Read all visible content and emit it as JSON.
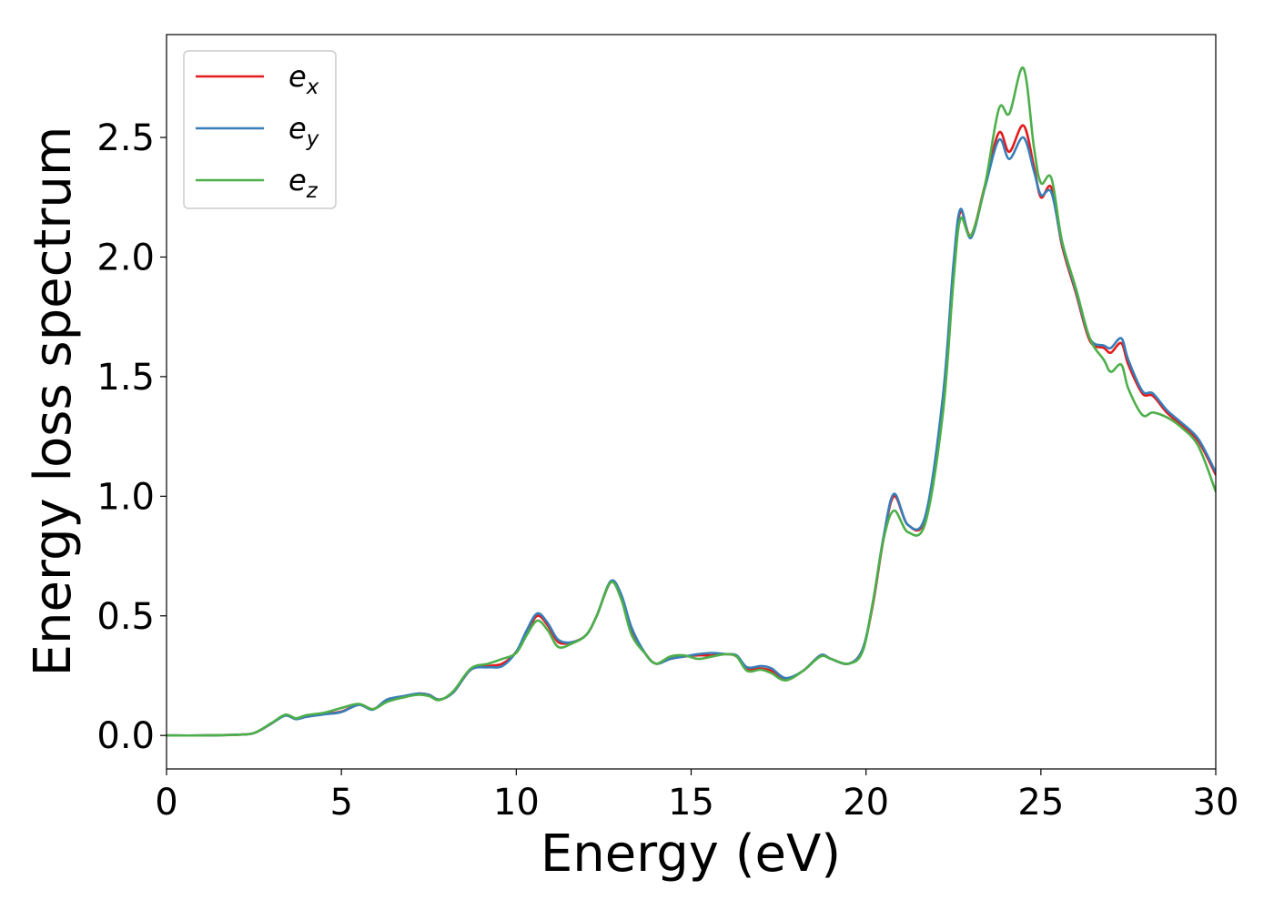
{
  "chart_data": {
    "type": "line",
    "title": "",
    "xlabel": "Energy (eV)",
    "ylabel": "Energy loss spectrum",
    "xlim": [
      0,
      30
    ],
    "ylim": [
      -0.14,
      2.93
    ],
    "x_ticks": [
      0,
      5,
      10,
      15,
      20,
      25,
      30
    ],
    "x_tick_labels": [
      "0",
      "5",
      "10",
      "15",
      "20",
      "25",
      "30"
    ],
    "y_ticks": [
      0.0,
      0.5,
      1.0,
      1.5,
      2.0,
      2.5
    ],
    "y_tick_labels": [
      "0.0",
      "0.5",
      "1.0",
      "1.5",
      "2.0",
      "2.5"
    ],
    "grid": false,
    "legend_position": "top-left",
    "series": [
      {
        "name": "e",
        "subscript": "x",
        "color": "#e41a1c",
        "points": [
          [
            0,
            0
          ],
          [
            1,
            0.0
          ],
          [
            2,
            0.003
          ],
          [
            2.5,
            0.01
          ],
          [
            3,
            0.05
          ],
          [
            3.4,
            0.085
          ],
          [
            3.7,
            0.07
          ],
          [
            4,
            0.08
          ],
          [
            4.5,
            0.09
          ],
          [
            5,
            0.1
          ],
          [
            5.5,
            0.13
          ],
          [
            5.9,
            0.11
          ],
          [
            6.3,
            0.145
          ],
          [
            6.8,
            0.16
          ],
          [
            7.2,
            0.175
          ],
          [
            7.5,
            0.17
          ],
          [
            7.8,
            0.15
          ],
          [
            8.2,
            0.18
          ],
          [
            8.7,
            0.275
          ],
          [
            9.2,
            0.29
          ],
          [
            9.6,
            0.3
          ],
          [
            10,
            0.35
          ],
          [
            10.3,
            0.43
          ],
          [
            10.6,
            0.5
          ],
          [
            10.9,
            0.46
          ],
          [
            11.2,
            0.39
          ],
          [
            11.6,
            0.39
          ],
          [
            12,
            0.42
          ],
          [
            12.3,
            0.5
          ],
          [
            12.7,
            0.64
          ],
          [
            13,
            0.58
          ],
          [
            13.3,
            0.44
          ],
          [
            13.7,
            0.34
          ],
          [
            14,
            0.3
          ],
          [
            14.4,
            0.32
          ],
          [
            14.8,
            0.33
          ],
          [
            15.2,
            0.335
          ],
          [
            15.6,
            0.335
          ],
          [
            16,
            0.34
          ],
          [
            16.3,
            0.33
          ],
          [
            16.6,
            0.28
          ],
          [
            17,
            0.28
          ],
          [
            17.3,
            0.27
          ],
          [
            17.7,
            0.235
          ],
          [
            18.2,
            0.27
          ],
          [
            18.7,
            0.335
          ],
          [
            19.0,
            0.32
          ],
          [
            19.5,
            0.3
          ],
          [
            19.9,
            0.36
          ],
          [
            20.2,
            0.55
          ],
          [
            20.5,
            0.82
          ],
          [
            20.8,
            1.0
          ],
          [
            21.2,
            0.88
          ],
          [
            21.7,
            0.91
          ],
          [
            22.2,
            1.4
          ],
          [
            22.5,
            1.95
          ],
          [
            22.7,
            2.19
          ],
          [
            23.0,
            2.09
          ],
          [
            23.4,
            2.3
          ],
          [
            23.8,
            2.52
          ],
          [
            24.1,
            2.44
          ],
          [
            24.5,
            2.55
          ],
          [
            24.8,
            2.38
          ],
          [
            25.0,
            2.25
          ],
          [
            25.3,
            2.29
          ],
          [
            25.6,
            2.05
          ],
          [
            26.0,
            1.85
          ],
          [
            26.4,
            1.65
          ],
          [
            26.8,
            1.62
          ],
          [
            27.0,
            1.6
          ],
          [
            27.3,
            1.64
          ],
          [
            27.5,
            1.55
          ],
          [
            27.9,
            1.43
          ],
          [
            28.2,
            1.42
          ],
          [
            28.6,
            1.35
          ],
          [
            29.0,
            1.3
          ],
          [
            29.5,
            1.23
          ],
          [
            30,
            1.09
          ]
        ]
      },
      {
        "name": "e",
        "subscript": "y",
        "color": "#377eb8",
        "points": [
          [
            0,
            0
          ],
          [
            1,
            0.0
          ],
          [
            2,
            0.003
          ],
          [
            2.5,
            0.01
          ],
          [
            3,
            0.05
          ],
          [
            3.4,
            0.083
          ],
          [
            3.7,
            0.068
          ],
          [
            4,
            0.078
          ],
          [
            4.5,
            0.088
          ],
          [
            5,
            0.098
          ],
          [
            5.5,
            0.128
          ],
          [
            5.9,
            0.108
          ],
          [
            6.3,
            0.15
          ],
          [
            6.8,
            0.165
          ],
          [
            7.2,
            0.175
          ],
          [
            7.5,
            0.17
          ],
          [
            7.8,
            0.15
          ],
          [
            8.2,
            0.18
          ],
          [
            8.7,
            0.275
          ],
          [
            9.2,
            0.285
          ],
          [
            9.6,
            0.29
          ],
          [
            10,
            0.35
          ],
          [
            10.3,
            0.44
          ],
          [
            10.6,
            0.51
          ],
          [
            10.9,
            0.47
          ],
          [
            11.2,
            0.4
          ],
          [
            11.6,
            0.39
          ],
          [
            12,
            0.42
          ],
          [
            12.3,
            0.5
          ],
          [
            12.7,
            0.645
          ],
          [
            13,
            0.59
          ],
          [
            13.3,
            0.45
          ],
          [
            13.7,
            0.34
          ],
          [
            14,
            0.3
          ],
          [
            14.4,
            0.32
          ],
          [
            14.8,
            0.33
          ],
          [
            15.2,
            0.34
          ],
          [
            15.6,
            0.345
          ],
          [
            16,
            0.34
          ],
          [
            16.3,
            0.335
          ],
          [
            16.6,
            0.285
          ],
          [
            17,
            0.29
          ],
          [
            17.3,
            0.28
          ],
          [
            17.7,
            0.24
          ],
          [
            18.2,
            0.27
          ],
          [
            18.7,
            0.335
          ],
          [
            19.0,
            0.32
          ],
          [
            19.5,
            0.3
          ],
          [
            19.9,
            0.36
          ],
          [
            20.2,
            0.56
          ],
          [
            20.5,
            0.83
          ],
          [
            20.8,
            1.01
          ],
          [
            21.2,
            0.88
          ],
          [
            21.7,
            0.92
          ],
          [
            22.2,
            1.42
          ],
          [
            22.5,
            1.97
          ],
          [
            22.7,
            2.2
          ],
          [
            23.0,
            2.08
          ],
          [
            23.4,
            2.29
          ],
          [
            23.8,
            2.49
          ],
          [
            24.1,
            2.41
          ],
          [
            24.5,
            2.5
          ],
          [
            24.8,
            2.36
          ],
          [
            25.0,
            2.26
          ],
          [
            25.3,
            2.27
          ],
          [
            25.6,
            2.06
          ],
          [
            26.0,
            1.86
          ],
          [
            26.4,
            1.66
          ],
          [
            26.8,
            1.63
          ],
          [
            27.0,
            1.62
          ],
          [
            27.3,
            1.66
          ],
          [
            27.5,
            1.57
          ],
          [
            27.9,
            1.44
          ],
          [
            28.2,
            1.43
          ],
          [
            28.6,
            1.36
          ],
          [
            29.0,
            1.31
          ],
          [
            29.5,
            1.24
          ],
          [
            30,
            1.1
          ]
        ]
      },
      {
        "name": "e",
        "subscript": "z",
        "color": "#4daf4a",
        "points": [
          [
            0,
            0
          ],
          [
            1,
            0.0
          ],
          [
            2,
            0.003
          ],
          [
            2.5,
            0.01
          ],
          [
            3,
            0.052
          ],
          [
            3.4,
            0.087
          ],
          [
            3.7,
            0.072
          ],
          [
            4,
            0.085
          ],
          [
            4.5,
            0.095
          ],
          [
            5,
            0.115
          ],
          [
            5.5,
            0.132
          ],
          [
            5.9,
            0.11
          ],
          [
            6.3,
            0.14
          ],
          [
            6.8,
            0.16
          ],
          [
            7.2,
            0.17
          ],
          [
            7.5,
            0.165
          ],
          [
            7.8,
            0.148
          ],
          [
            8.2,
            0.185
          ],
          [
            8.7,
            0.28
          ],
          [
            9.2,
            0.3
          ],
          [
            9.6,
            0.32
          ],
          [
            10,
            0.345
          ],
          [
            10.3,
            0.42
          ],
          [
            10.6,
            0.48
          ],
          [
            10.9,
            0.44
          ],
          [
            11.2,
            0.37
          ],
          [
            11.6,
            0.385
          ],
          [
            12,
            0.42
          ],
          [
            12.3,
            0.5
          ],
          [
            12.7,
            0.64
          ],
          [
            13,
            0.57
          ],
          [
            13.3,
            0.42
          ],
          [
            13.7,
            0.34
          ],
          [
            14,
            0.3
          ],
          [
            14.4,
            0.33
          ],
          [
            14.8,
            0.335
          ],
          [
            15.2,
            0.32
          ],
          [
            15.6,
            0.33
          ],
          [
            16,
            0.34
          ],
          [
            16.3,
            0.33
          ],
          [
            16.6,
            0.27
          ],
          [
            17,
            0.275
          ],
          [
            17.3,
            0.26
          ],
          [
            17.7,
            0.23
          ],
          [
            18.2,
            0.27
          ],
          [
            18.7,
            0.33
          ],
          [
            19.0,
            0.32
          ],
          [
            19.5,
            0.3
          ],
          [
            19.9,
            0.35
          ],
          [
            20.2,
            0.56
          ],
          [
            20.5,
            0.82
          ],
          [
            20.8,
            0.94
          ],
          [
            21.2,
            0.85
          ],
          [
            21.7,
            0.89
          ],
          [
            22.2,
            1.35
          ],
          [
            22.5,
            1.9
          ],
          [
            22.7,
            2.16
          ],
          [
            23.0,
            2.09
          ],
          [
            23.4,
            2.3
          ],
          [
            23.8,
            2.62
          ],
          [
            24.1,
            2.6
          ],
          [
            24.5,
            2.79
          ],
          [
            24.8,
            2.46
          ],
          [
            25.0,
            2.31
          ],
          [
            25.3,
            2.33
          ],
          [
            25.6,
            2.07
          ],
          [
            26.0,
            1.87
          ],
          [
            26.4,
            1.66
          ],
          [
            26.8,
            1.57
          ],
          [
            27.0,
            1.52
          ],
          [
            27.3,
            1.55
          ],
          [
            27.5,
            1.45
          ],
          [
            27.9,
            1.34
          ],
          [
            28.2,
            1.35
          ],
          [
            28.6,
            1.33
          ],
          [
            29.0,
            1.29
          ],
          [
            29.5,
            1.21
          ],
          [
            30,
            1.02
          ]
        ]
      }
    ]
  }
}
